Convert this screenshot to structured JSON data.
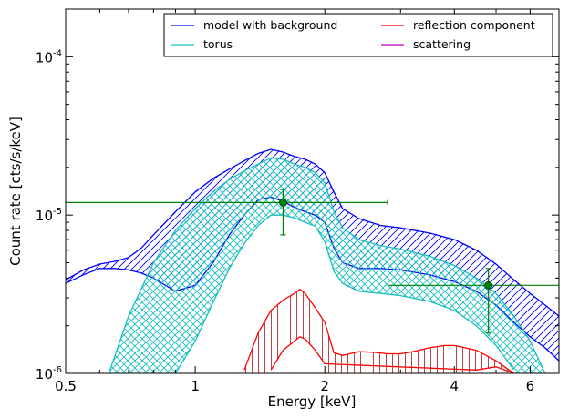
{
  "chart_data": {
    "type": "line",
    "xlabel": "Energy [keV]",
    "ylabel": "Count rate [cts/s/keV]",
    "x_scale": "log",
    "y_scale": "log",
    "xlim": [
      0.5,
      7.0
    ],
    "ylim": [
      1e-06,
      0.0002
    ],
    "x_ticks": [
      0.5,
      1,
      2,
      4,
      6
    ],
    "x_tick_labels": [
      "0.5",
      "1",
      "2",
      "4",
      "6"
    ],
    "y_ticks": [
      1e-06,
      1e-05,
      0.0001
    ],
    "y_tick_labels": [
      {
        "base": "10",
        "exp": "-6"
      },
      {
        "base": "10",
        "exp": "-5"
      },
      {
        "base": "10",
        "exp": "-4"
      }
    ],
    "grid": false,
    "legend_position": "top-right",
    "legend": [
      {
        "label": "model with background",
        "color": "#0000ff"
      },
      {
        "label": "reflection component",
        "color": "#ff0000"
      },
      {
        "label": "torus",
        "color": "#17bebe"
      },
      {
        "label": "scattering",
        "color": "#bf00bf"
      }
    ],
    "series": [
      {
        "name": "model with background",
        "color": "#0000ff",
        "x": [
          0.5,
          0.55,
          0.6,
          0.65,
          0.7,
          0.75,
          0.8,
          0.9,
          1.0,
          1.1,
          1.2,
          1.3,
          1.4,
          1.5,
          1.6,
          1.7,
          1.8,
          1.9,
          2.0,
          2.1,
          2.2,
          2.4,
          2.7,
          3.0,
          3.5,
          4.0,
          4.5,
          5.0,
          5.5,
          6.0,
          6.5,
          7.0
        ],
        "upper": [
          3.9e-06,
          4.5e-06,
          4.9e-06,
          5.1e-06,
          5.4e-06,
          6.2e-06,
          7.5e-06,
          1.05e-05,
          1.4e-05,
          1.7e-05,
          1.95e-05,
          2.2e-05,
          2.45e-05,
          2.6e-05,
          2.5e-05,
          2.35e-05,
          2.25e-05,
          2.1e-05,
          1.85e-05,
          1.4e-05,
          1.1e-05,
          9.5e-06,
          8.6e-06,
          8.3e-06,
          7.7e-06,
          7e-06,
          6e-06,
          4.9e-06,
          3.9e-06,
          3.2e-06,
          2.7e-06,
          2.3e-06
        ],
        "lower": [
          3.7e-06,
          4.2e-06,
          4.6e-06,
          4.6e-06,
          4.5e-06,
          4.3e-06,
          4e-06,
          3.3e-06,
          3.6e-06,
          5e-06,
          7.5e-06,
          1e-05,
          1.25e-05,
          1.3e-05,
          1.22e-05,
          1.12e-05,
          1.05e-05,
          1e-05,
          9e-06,
          6.2e-06,
          5e-06,
          4.6e-06,
          4.6e-06,
          4.5e-06,
          4.2e-06,
          3.8e-06,
          3.3e-06,
          2.7e-06,
          2.1e-06,
          1.7e-06,
          1.45e-06,
          1.2e-06
        ]
      },
      {
        "name": "torus",
        "color": "#17bebe",
        "x": [
          0.63,
          0.7,
          0.8,
          0.9,
          1.0,
          1.1,
          1.2,
          1.3,
          1.4,
          1.5,
          1.6,
          1.7,
          1.8,
          1.9,
          2.0,
          2.1,
          2.2,
          2.4,
          2.7,
          3.0,
          3.5,
          4.0,
          4.5,
          5.0,
          5.5,
          6.0,
          6.5
        ],
        "upper": [
          1e-06,
          2.3e-06,
          5e-06,
          8e-06,
          1.1e-05,
          1.4e-05,
          1.68e-05,
          1.9e-05,
          2.1e-05,
          2.3e-05,
          2.25e-05,
          2.1e-05,
          2e-05,
          1.85e-05,
          1.6e-05,
          1.05e-05,
          8.3e-06,
          7e-06,
          6.4e-06,
          6.1e-06,
          5.5e-06,
          4.8e-06,
          4e-06,
          3.2e-06,
          2.3e-06,
          1.6e-06,
          1e-06
        ],
        "lower": [
          null,
          null,
          null,
          1e-06,
          1.6e-06,
          2.8e-06,
          4.6e-06,
          6.6e-06,
          8.6e-06,
          1e-05,
          1e-05,
          9.6e-06,
          9e-06,
          8.5e-06,
          6.8e-06,
          4.4e-06,
          3.7e-06,
          3.3e-06,
          3.2e-06,
          3.1e-06,
          2.85e-06,
          2.5e-06,
          2e-06,
          1.5e-06,
          1.05e-06,
          null,
          null
        ]
      },
      {
        "name": "reflection component",
        "color": "#ff0000",
        "x": [
          1.3,
          1.4,
          1.5,
          1.6,
          1.7,
          1.75,
          1.8,
          1.9,
          2.0,
          2.1,
          2.2,
          2.4,
          2.6,
          2.8,
          3.0,
          3.2,
          3.5,
          3.8,
          4.0,
          4.5,
          5.0,
          5.5,
          6.0
        ],
        "upper": [
          1.05e-06,
          1.8e-06,
          2.5e-06,
          2.9e-06,
          3.2e-06,
          3.4e-06,
          3.2e-06,
          2.6e-06,
          2.1e-06,
          1.35e-06,
          1.3e-06,
          1.37e-06,
          1.36e-06,
          1.33e-06,
          1.33e-06,
          1.37e-06,
          1.45e-06,
          1.5e-06,
          1.5e-06,
          1.4e-06,
          1.2e-06,
          1e-06,
          null
        ],
        "lower": [
          null,
          null,
          1.05e-06,
          1.4e-06,
          1.6e-06,
          1.7e-06,
          1.65e-06,
          1.4e-06,
          1.15e-06,
          null,
          null,
          null,
          null,
          null,
          null,
          null,
          null,
          null,
          null,
          1.05e-06,
          1.1e-06,
          1e-06,
          null
        ]
      },
      {
        "name": "scattering",
        "color": "#bf00bf",
        "x": [],
        "upper": [],
        "lower": []
      }
    ],
    "data_points": {
      "color": "#008000",
      "points": [
        {
          "x": 1.6,
          "y": 1.2e-05,
          "xerr": [
            0.5,
            2.8
          ],
          "yerr": [
            7.5e-06,
            1.45e-05
          ]
        },
        {
          "x": 4.8,
          "y": 3.6e-06,
          "xerr": [
            2.8,
            7.0
          ],
          "yerr": [
            1.8e-06,
            4.6e-06
          ]
        }
      ]
    }
  }
}
